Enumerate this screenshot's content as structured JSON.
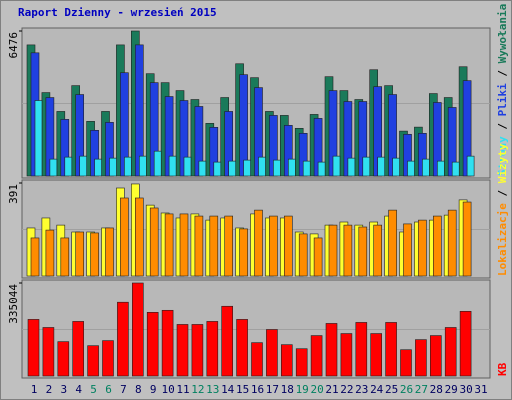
{
  "legend_separator": " / ",
  "chart_data": [
    {
      "type": "bar",
      "title": "Raport Dzienny -  wrzesień 2015",
      "ylim": [
        0,
        6476
      ],
      "yticks": [
        6476
      ],
      "series": [
        {
          "name": "Wywołania",
          "color": "#1a7a5a",
          "values": [
            5855,
            3726,
            2883,
            4037,
            2440,
            2883,
            5855,
            6476,
            4569,
            4170,
            3815,
            3416,
            2351,
            3505,
            5013,
            4392,
            2883,
            2706,
            2129,
            2750,
            4436,
            3815,
            3416,
            4746,
            4037,
            2005,
            2183,
            3682,
            3505,
            4880,
            null
          ]
        },
        {
          "name": "Pliki",
          "color": "#2040e0",
          "values": [
            5501,
            3504,
            2529,
            3638,
            2041,
            2395,
            4613,
            5856,
            4170,
            3549,
            3371,
            3105,
            2174,
            2883,
            4525,
            3948,
            2706,
            2262,
            1907,
            2573,
            3815,
            3327,
            3327,
            3992,
            3638,
            1863,
            1907,
            3283,
            3061,
            4259,
            null
          ]
        },
        {
          "name": "Strony",
          "color": "#30e0f0",
          "values": [
            3371,
            754,
            843,
            887,
            754,
            798,
            843,
            887,
            1109,
            887,
            843,
            665,
            621,
            665,
            710,
            843,
            710,
            754,
            665,
            621,
            887,
            798,
            843,
            843,
            798,
            665,
            754,
            665,
            621,
            887,
            null
          ]
        }
      ]
    },
    {
      "type": "bar",
      "ylim": [
        0,
        391
      ],
      "yticks": [
        391
      ],
      "series": [
        {
          "name": "Wizyty",
          "color": "#ffff30",
          "values": [
            202,
            244,
            214,
            185,
            185,
            202,
            370,
            387,
            298,
            265,
            244,
            261,
            235,
            244,
            202,
            261,
            244,
            244,
            185,
            177,
            214,
            227,
            214,
            227,
            252,
            185,
            227,
            235,
            256,
            320,
            null
          ]
        },
        {
          "name": "Lokalizacje",
          "color": "#ff8c00",
          "values": [
            160,
            193,
            160,
            185,
            181,
            202,
            328,
            328,
            286,
            261,
            261,
            252,
            252,
            252,
            198,
            277,
            252,
            252,
            177,
            160,
            214,
            214,
            206,
            214,
            277,
            219,
            235,
            252,
            277,
            311,
            null
          ]
        }
      ]
    },
    {
      "type": "bar",
      "ylim": [
        0,
        335044
      ],
      "yticks": [
        335044
      ],
      "categories": [
        "1",
        "2",
        "3",
        "4",
        "5",
        "6",
        "7",
        "8",
        "9",
        "10",
        "11",
        "12",
        "13",
        "14",
        "15",
        "16",
        "17",
        "18",
        "19",
        "20",
        "21",
        "22",
        "23",
        "24",
        "25",
        "26",
        "27",
        "28",
        "29",
        "30",
        "31"
      ],
      "category_colors": [
        "#000060",
        "#000060",
        "#000060",
        "#000060",
        "#008060",
        "#008060",
        "#000060",
        "#000060",
        "#000060",
        "#000060",
        "#000060",
        "#008060",
        "#008060",
        "#000060",
        "#000060",
        "#000060",
        "#000060",
        "#000060",
        "#008060",
        "#008060",
        "#000060",
        "#000060",
        "#000060",
        "#000060",
        "#000060",
        "#008060",
        "#008060",
        "#000060",
        "#000060",
        "#000060",
        "#000060"
      ],
      "series": [
        {
          "name": "KB",
          "color": "#ff0000",
          "values": [
            203942,
            174806,
            123822,
            196658,
            109253,
            127462,
            265848,
            335044,
            229431,
            236718,
            185731,
            185731,
            196658,
            251283,
            203942,
            120178,
            167524,
            112895,
            98327,
            145671,
            189373,
            152954,
            193014,
            152954,
            193014,
            94686,
            131104,
            145671,
            174806,
            233076,
            null
          ]
        }
      ]
    }
  ]
}
